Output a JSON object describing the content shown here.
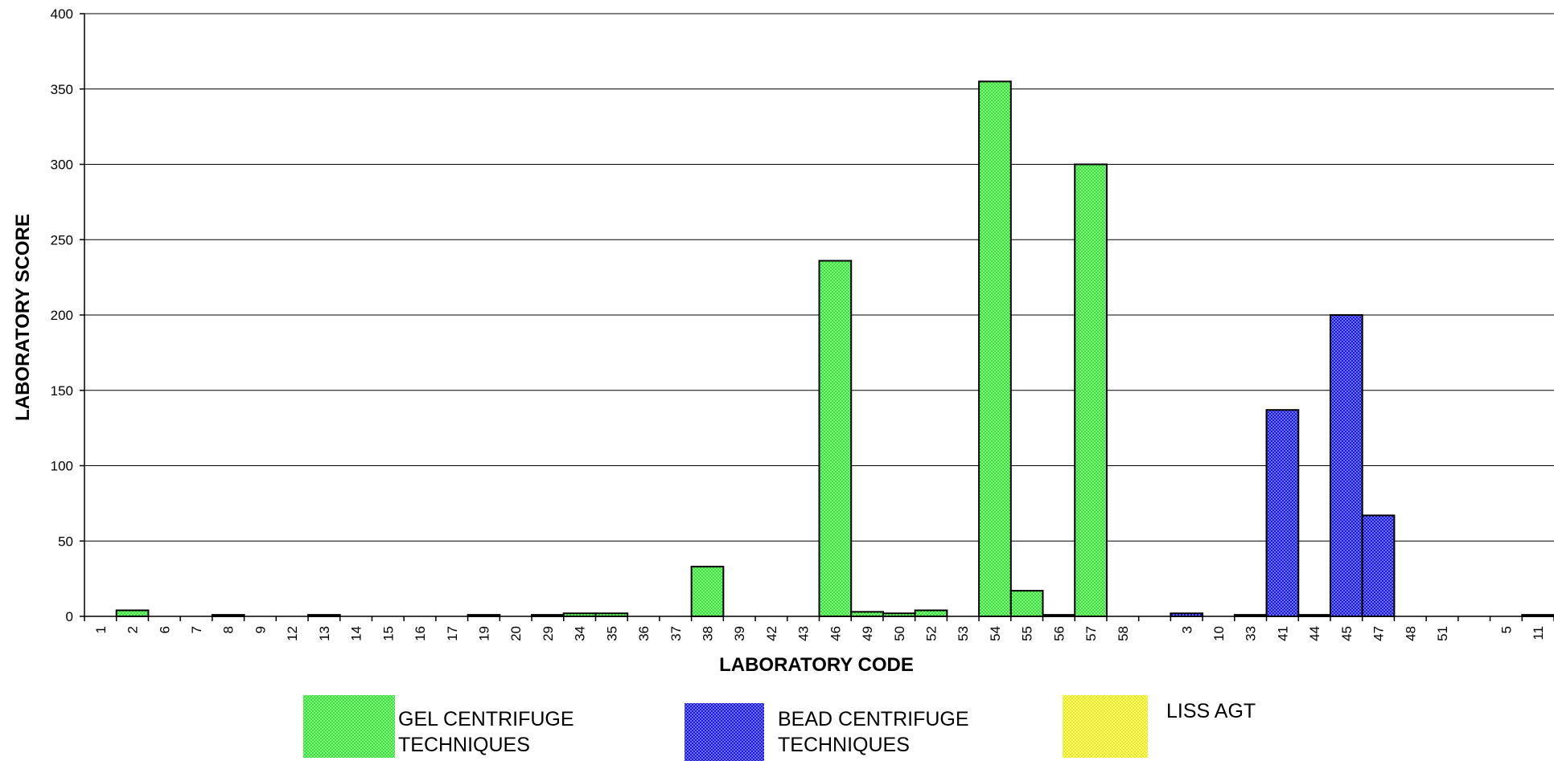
{
  "chart_data": {
    "type": "bar",
    "title": "",
    "xlabel": "LABORATORY CODE",
    "ylabel": "LABORATORY SCORE",
    "ylim": [
      0,
      400
    ],
    "yticks": [
      0,
      50,
      100,
      150,
      200,
      250,
      300,
      350,
      400
    ],
    "grid": true,
    "legend_position": "bottom",
    "categories": [
      "1",
      "2",
      "6",
      "7",
      "8",
      "9",
      "12",
      "13",
      "14",
      "15",
      "16",
      "17",
      "19",
      "20",
      "29",
      "34",
      "35",
      "36",
      "37",
      "38",
      "39",
      "42",
      "43",
      "46",
      "49",
      "50",
      "52",
      "53",
      "54",
      "55",
      "56",
      "57",
      "58",
      "",
      "3",
      "10",
      "33",
      "41",
      "44",
      "45",
      "47",
      "48",
      "51",
      "",
      "5",
      "11"
    ],
    "series": [
      {
        "name": "GEL CENTRIFUGE TECHNIQUES",
        "color": "#55ee55",
        "values": [
          0,
          4,
          0,
          0,
          1,
          0,
          0,
          1,
          0,
          0,
          0,
          0,
          1,
          0,
          1,
          2,
          2,
          0,
          0,
          33,
          0,
          0,
          0,
          236,
          3,
          2,
          4,
          0,
          355,
          17,
          1,
          300,
          0,
          null,
          null,
          null,
          null,
          null,
          null,
          null,
          null,
          null,
          null,
          null,
          null,
          null
        ]
      },
      {
        "name": "BEAD CENTRIFUGE TECHNIQUES",
        "color": "#3333ee",
        "values": [
          null,
          null,
          null,
          null,
          null,
          null,
          null,
          null,
          null,
          null,
          null,
          null,
          null,
          null,
          null,
          null,
          null,
          null,
          null,
          null,
          null,
          null,
          null,
          null,
          null,
          null,
          null,
          null,
          null,
          null,
          null,
          null,
          null,
          null,
          2,
          0,
          1,
          137,
          1,
          200,
          67,
          0,
          0,
          null,
          null,
          null
        ]
      },
      {
        "name": "LISS AGT",
        "color": "#eeee44",
        "values": [
          null,
          null,
          null,
          null,
          null,
          null,
          null,
          null,
          null,
          null,
          null,
          null,
          null,
          null,
          null,
          null,
          null,
          null,
          null,
          null,
          null,
          null,
          null,
          null,
          null,
          null,
          null,
          null,
          null,
          null,
          null,
          null,
          null,
          null,
          null,
          null,
          null,
          null,
          null,
          null,
          null,
          null,
          null,
          null,
          0,
          1
        ]
      }
    ]
  }
}
